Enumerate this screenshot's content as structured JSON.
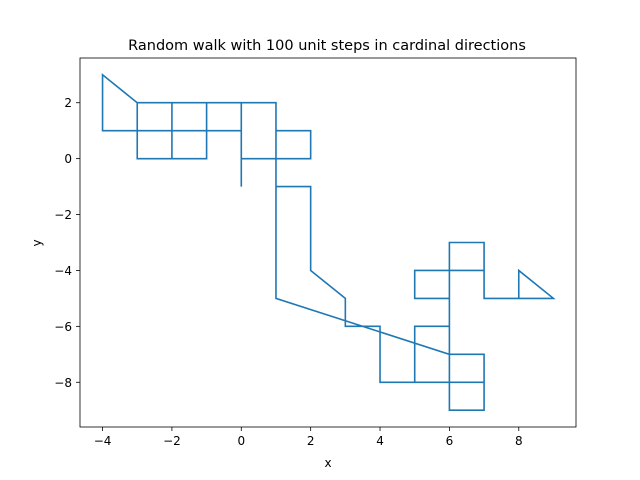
{
  "chart_data": {
    "type": "line",
    "title": "Random walk with 100 unit steps in cardinal directions",
    "xlabel": "x",
    "ylabel": "y",
    "xlim": [
      -4.65,
      9.65
    ],
    "ylim": [
      -9.6,
      3.6
    ],
    "xticks": [
      -4,
      -2,
      0,
      2,
      4,
      6,
      8
    ],
    "yticks": [
      2,
      0,
      -2,
      -4,
      -6,
      -8
    ],
    "grid": false,
    "series": [
      {
        "color": "#1f77b4",
        "x": [
          0,
          0,
          1,
          1,
          2,
          2,
          1,
          1,
          2,
          2,
          2,
          3,
          3,
          4,
          4,
          5,
          5,
          6,
          6,
          5,
          5,
          6,
          6,
          7,
          7,
          8,
          8,
          9,
          8,
          7,
          7,
          6,
          6,
          6,
          7,
          7,
          6,
          5,
          6,
          6,
          7,
          7,
          6,
          6,
          1,
          1,
          0,
          0,
          -1,
          -1,
          -2,
          -2,
          -1,
          -1,
          -2,
          -3,
          -3,
          -4,
          -4,
          -3,
          -3,
          0,
          0,
          -3,
          -3,
          -2,
          -2,
          -1,
          -1
        ],
        "y": [
          -1,
          2,
          2,
          0,
          0,
          1,
          1,
          -1,
          -1,
          -2,
          -4,
          -5,
          -6,
          -6,
          -8,
          -8,
          -6,
          -6,
          -5,
          -5,
          -4,
          -4,
          -3,
          -3,
          -5,
          -5,
          -4,
          -5,
          -5,
          -5,
          -4,
          -4,
          -5,
          -7,
          -7,
          -8,
          -8,
          -8,
          -8,
          -9,
          -9,
          -8,
          -8,
          -7,
          -5,
          0,
          0,
          1,
          1,
          2,
          2,
          1,
          1,
          0,
          0,
          0,
          1,
          1,
          3,
          2,
          1,
          1,
          2,
          2,
          0,
          0,
          1,
          1,
          0
        ]
      }
    ]
  }
}
